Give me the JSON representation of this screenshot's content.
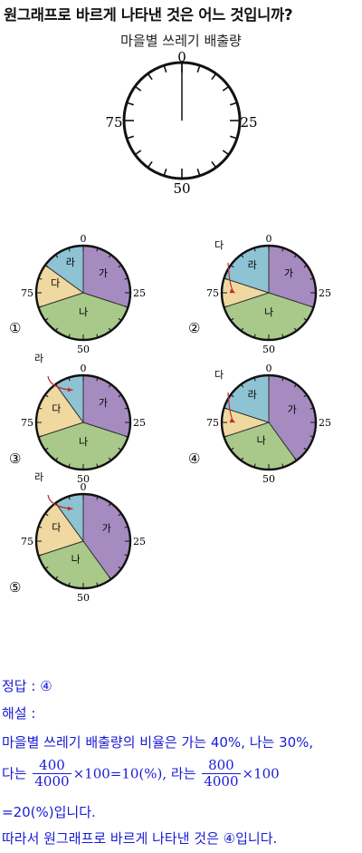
{
  "question": "원그래프로 바르게 나타낸 것은 어느 것입니까?",
  "chart_title": "마을별 쓰레기 배출량",
  "scale_labels": {
    "top": "0",
    "right": "25",
    "bottom": "50",
    "left": "75"
  },
  "choice_markers": [
    "①",
    "②",
    "③",
    "④",
    "⑤"
  ],
  "colors": {
    "ga": "#a68bc0",
    "na": "#a9c98a",
    "da": "#f0d9a0",
    "ra": "#8ec3d4",
    "arrow": "#c0292b",
    "solution_text": "#1a1ad6"
  },
  "chart_data": [
    {
      "type": "pie",
      "marker": "①",
      "slices": [
        {
          "label": "가",
          "pct_text": "(30%)",
          "value": 30
        },
        {
          "label": "나",
          "pct_text": "(40%)",
          "value": 40
        },
        {
          "label": "다",
          "pct_text": "(15%)",
          "value": 15
        },
        {
          "label": "라",
          "pct_text": "(15%)",
          "value": 15
        }
      ]
    },
    {
      "type": "pie",
      "marker": "②",
      "slices": [
        {
          "label": "가",
          "pct_text": "(30%)",
          "value": 30
        },
        {
          "label": "나",
          "pct_text": "(40%)",
          "value": 40
        },
        {
          "label": "다",
          "pct_text": "(10%)",
          "value": 10
        },
        {
          "label": "라",
          "pct_text": "(20%)",
          "value": 20
        }
      ]
    },
    {
      "type": "pie",
      "marker": "③",
      "slices": [
        {
          "label": "가",
          "pct_text": "(30%)",
          "value": 30
        },
        {
          "label": "나",
          "pct_text": "(40%)",
          "value": 40
        },
        {
          "label": "다",
          "pct_text": "(20%)",
          "value": 20
        },
        {
          "label": "라",
          "pct_text": "(10%)",
          "value": 10
        }
      ]
    },
    {
      "type": "pie",
      "marker": "④",
      "slices": [
        {
          "label": "가",
          "pct_text": "(40%)",
          "value": 40
        },
        {
          "label": "나",
          "pct_text": "(30%)",
          "value": 30
        },
        {
          "label": "다",
          "pct_text": "(10%)",
          "value": 10
        },
        {
          "label": "라",
          "pct_text": "(20%)",
          "value": 20
        }
      ]
    },
    {
      "type": "pie",
      "marker": "⑤",
      "slices": [
        {
          "label": "가",
          "pct_text": "(40%)",
          "value": 40
        },
        {
          "label": "나",
          "pct_text": "(30%)",
          "value": 30
        },
        {
          "label": "다",
          "pct_text": "(20%)",
          "value": 20
        },
        {
          "label": "라",
          "pct_text": "(10%)",
          "value": 10
        }
      ]
    }
  ],
  "solution": {
    "answer_label": "정답 :",
    "answer_value": "④",
    "explain_label": "해설 :",
    "line1": "마을별 쓰레기 배출량의 비율은 가는 40%, 나는 30%,",
    "line2_prefix": "다는",
    "frac1_num": "400",
    "frac1_den": "4000",
    "line2_mid": "×100=10(%), 라는",
    "frac2_num": "800",
    "frac2_den": "4000",
    "line2_suffix": "×100",
    "line3": "=20(%)입니다.",
    "line4": "따라서 원그래프로 바르게 나타낸 것은 ④입니다."
  }
}
